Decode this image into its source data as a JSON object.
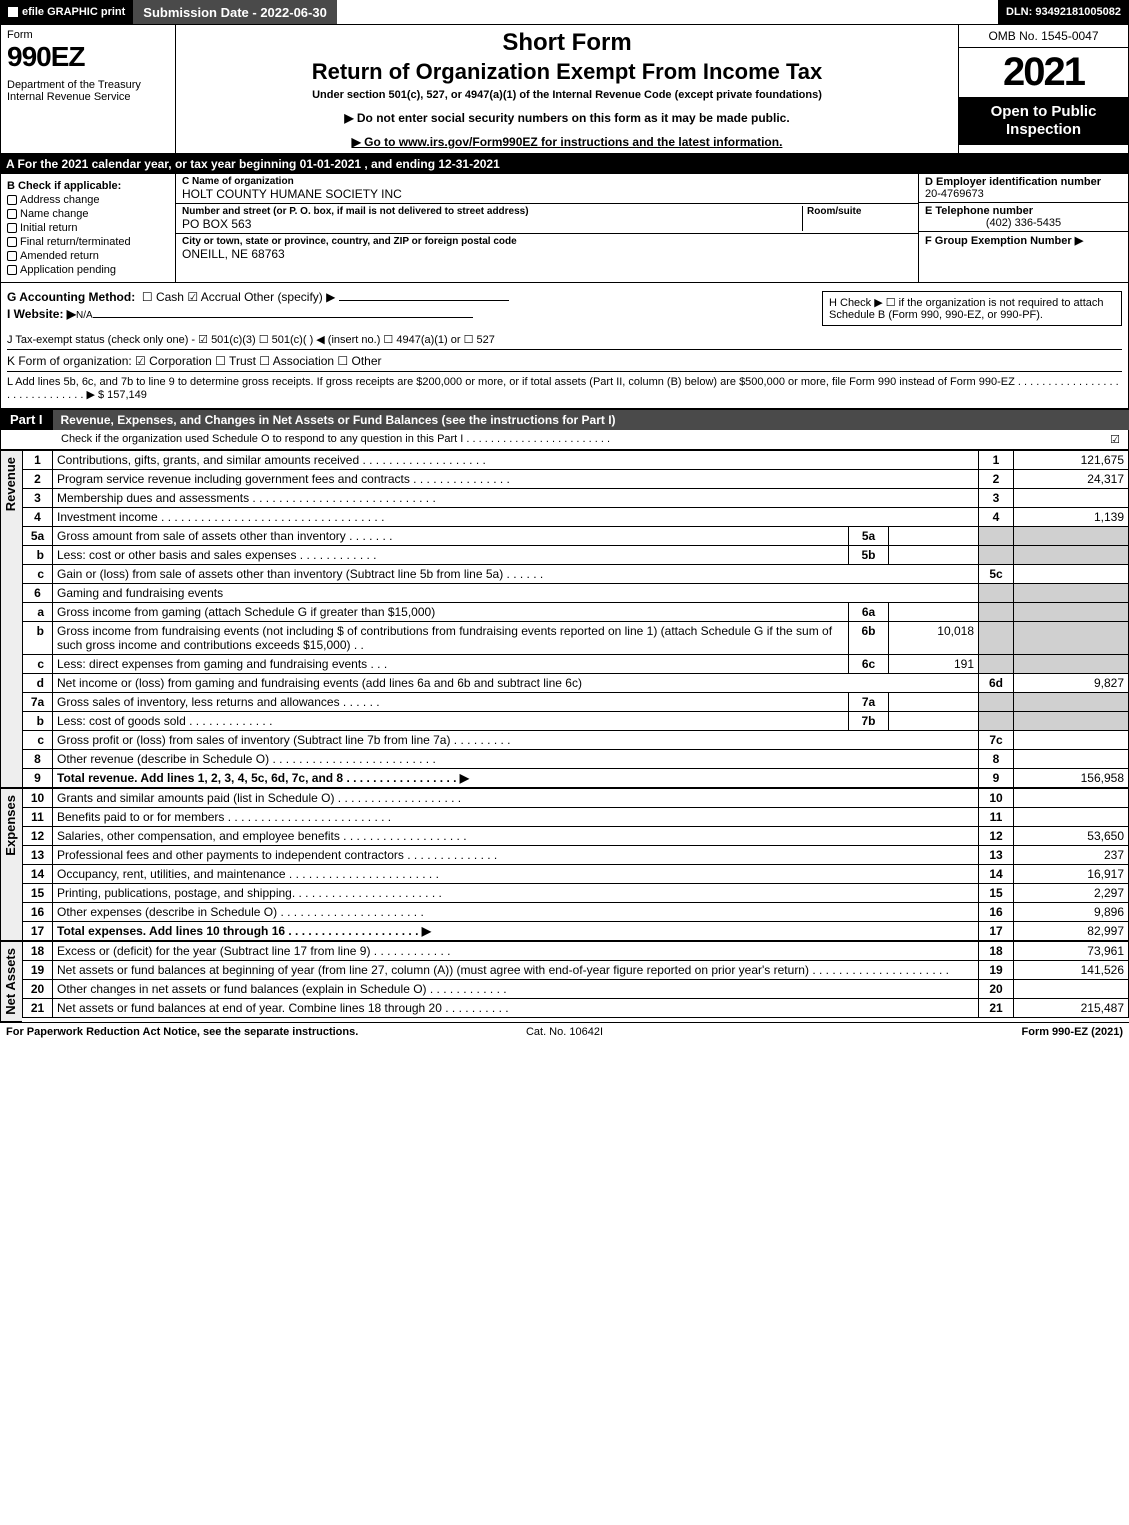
{
  "topbar": {
    "efile": "efile GRAPHIC print",
    "submission": "Submission Date - 2022-06-30",
    "dln": "DLN: 93492181005082"
  },
  "header": {
    "form_word": "Form",
    "form_no": "990EZ",
    "dept": "Department of the Treasury\nInternal Revenue Service",
    "title1": "Short Form",
    "title2": "Return of Organization Exempt From Income Tax",
    "subtitle": "Under section 501(c), 527, or 4947(a)(1) of the Internal Revenue Code (except private foundations)",
    "warn": "▶ Do not enter social security numbers on this form as it may be made public.",
    "goto": "▶ Go to www.irs.gov/Form990EZ for instructions and the latest information.",
    "omb": "OMB No. 1545-0047",
    "year": "2021",
    "badge": "Open to Public Inspection"
  },
  "rowA": "A  For the 2021 calendar year, or tax year beginning 01-01-2021 , and ending 12-31-2021",
  "colB": {
    "title": "B  Check if applicable:",
    "items": [
      "Address change",
      "Name change",
      "Initial return",
      "Final return/terminated",
      "Amended return",
      "Application pending"
    ]
  },
  "colC": {
    "name_lbl": "C Name of organization",
    "name": "HOLT COUNTY HUMANE SOCIETY INC",
    "street_lbl": "Number and street (or P. O. box, if mail is not delivered to street address)",
    "room_lbl": "Room/suite",
    "street": "PO BOX 563",
    "city_lbl": "City or town, state or province, country, and ZIP or foreign postal code",
    "city": "ONEILL, NE  68763"
  },
  "colD": {
    "ein_lbl": "D Employer identification number",
    "ein": "20-4769673",
    "tel_lbl": "E Telephone number",
    "tel": "(402) 336-5435",
    "grp_lbl": "F Group Exemption Number  ▶"
  },
  "mid": {
    "G": "G Accounting Method:",
    "G_opts": "☐ Cash   ☑ Accrual   Other (specify) ▶",
    "H": "H   Check ▶  ☐  if the organization is not required to attach Schedule B (Form 990, 990-EZ, or 990-PF).",
    "I": "I Website: ▶",
    "I_val": "N/A",
    "J": "J Tax-exempt status (check only one) - ☑ 501(c)(3) ☐ 501(c)(  ) ◀ (insert no.) ☐ 4947(a)(1) or ☐ 527",
    "K": "K Form of organization:   ☑ Corporation   ☐ Trust   ☐ Association   ☐ Other",
    "L": "L Add lines 5b, 6c, and 7b to line 9 to determine gross receipts. If gross receipts are $200,000 or more, or if total assets (Part II, column (B) below) are $500,000 or more, file Form 990 instead of Form 990-EZ  .  .  .  .  .  .  .  .  .  .  .  .  .  .  .  .  .  .  .  .  .  .  .  .  .  .  .  .  .  .  ▶ $ 157,149"
  },
  "part1": {
    "tag": "Part I",
    "title": "Revenue, Expenses, and Changes in Net Assets or Fund Balances (see the instructions for Part I)",
    "sub": "Check if the organization used Schedule O to respond to any question in this Part I  .  .  .  .  .  .  .  .  .  .  .  .  .  .  .  .  .  .  .  .  .  .  .  .",
    "checked": "☑"
  },
  "groups": {
    "revenue": "Revenue",
    "expenses": "Expenses",
    "netassets": "Net Assets"
  },
  "lines": [
    {
      "g": "rev",
      "n": "1",
      "d": "Contributions, gifts, grants, and similar amounts received  .  .  .  .  .  .  .  .  .  .  .  .  .  .  .  .  .  .  .",
      "r": "1",
      "a": "121,675"
    },
    {
      "g": "rev",
      "n": "2",
      "d": "Program service revenue including government fees and contracts  .  .  .  .  .  .  .  .  .  .  .  .  .  .  .",
      "r": "2",
      "a": "24,317"
    },
    {
      "g": "rev",
      "n": "3",
      "d": "Membership dues and assessments  .  .  .  .  .  .  .  .  .  .  .  .  .  .  .  .  .  .  .  .  .  .  .  .  .  .  .  .",
      "r": "3",
      "a": ""
    },
    {
      "g": "rev",
      "n": "4",
      "d": "Investment income  .  .  .  .  .  .  .  .  .  .  .  .  .  .  .  .  .  .  .  .  .  .  .  .  .  .  .  .  .  .  .  .  .  .",
      "r": "4",
      "a": "1,139"
    },
    {
      "g": "rev",
      "n": "5a",
      "d": "Gross amount from sale of assets other than inventory  .  .  .  .  .  .  .",
      "box": "5a",
      "bv": "",
      "shade": true
    },
    {
      "g": "rev",
      "n": "b",
      "d": "Less: cost or other basis and sales expenses  .  .  .  .  .  .  .  .  .  .  .  .",
      "box": "5b",
      "bv": "",
      "shade": true
    },
    {
      "g": "rev",
      "n": "c",
      "d": "Gain or (loss) from sale of assets other than inventory (Subtract line 5b from line 5a)  .  .  .  .  .  .",
      "r": "5c",
      "a": ""
    },
    {
      "g": "rev",
      "n": "6",
      "d": "Gaming and fundraising events",
      "shade": true
    },
    {
      "g": "rev",
      "n": "a",
      "d": "Gross income from gaming (attach Schedule G if greater than $15,000)",
      "box": "6a",
      "bv": "",
      "shade": true
    },
    {
      "g": "rev",
      "n": "b",
      "d": "Gross income from fundraising events (not including $                      of contributions from fundraising events reported on line 1) (attach Schedule G if the sum of such gross income and contributions exceeds $15,000)    .   .",
      "box": "6b",
      "bv": "10,018",
      "shade": true
    },
    {
      "g": "rev",
      "n": "c",
      "d": "Less: direct expenses from gaming and fundraising events       .   .   .",
      "box": "6c",
      "bv": "191",
      "shade": true
    },
    {
      "g": "rev",
      "n": "d",
      "d": "Net income or (loss) from gaming and fundraising events (add lines 6a and 6b and subtract line 6c)",
      "r": "6d",
      "a": "9,827"
    },
    {
      "g": "rev",
      "n": "7a",
      "d": "Gross sales of inventory, less returns and allowances  .  .  .  .  .  .",
      "box": "7a",
      "bv": "",
      "shade": true
    },
    {
      "g": "rev",
      "n": "b",
      "d": "Less: cost of goods sold        .   .   .   .   .   .   .   .   .   .   .   .   .",
      "box": "7b",
      "bv": "",
      "shade": true
    },
    {
      "g": "rev",
      "n": "c",
      "d": "Gross profit or (loss) from sales of inventory (Subtract line 7b from line 7a)  .  .  .  .  .  .  .  .  .",
      "r": "7c",
      "a": ""
    },
    {
      "g": "rev",
      "n": "8",
      "d": "Other revenue (describe in Schedule O)  .  .  .  .  .  .  .  .  .  .  .  .  .  .  .  .  .  .  .  .  .  .  .  .  .",
      "r": "8",
      "a": ""
    },
    {
      "g": "rev",
      "n": "9",
      "d": "Total revenue. Add lines 1, 2, 3, 4, 5c, 6d, 7c, and 8   .  .  .  .  .  .  .  .  .  .  .  .  .  .  .  .  .   ▶",
      "r": "9",
      "a": "156,958",
      "bold": true
    },
    {
      "g": "exp",
      "n": "10",
      "d": "Grants and similar amounts paid (list in Schedule O)  .  .  .  .  .  .  .  .  .  .  .  .  .  .  .  .  .  .  .",
      "r": "10",
      "a": ""
    },
    {
      "g": "exp",
      "n": "11",
      "d": "Benefits paid to or for members       .  .  .  .  .  .  .  .  .  .  .  .  .  .  .  .  .  .  .  .  .  .  .  .  .",
      "r": "11",
      "a": ""
    },
    {
      "g": "exp",
      "n": "12",
      "d": "Salaries, other compensation, and employee benefits  .  .  .  .  .  .  .  .  .  .  .  .  .  .  .  .  .  .  .",
      "r": "12",
      "a": "53,650"
    },
    {
      "g": "exp",
      "n": "13",
      "d": "Professional fees and other payments to independent contractors  .  .  .  .  .  .  .  .  .  .  .  .  .  .",
      "r": "13",
      "a": "237"
    },
    {
      "g": "exp",
      "n": "14",
      "d": "Occupancy, rent, utilities, and maintenance  .  .  .  .  .  .  .  .  .  .  .  .  .  .  .  .  .  .  .  .  .  .  .",
      "r": "14",
      "a": "16,917"
    },
    {
      "g": "exp",
      "n": "15",
      "d": "Printing, publications, postage, and shipping.  .  .  .  .  .  .  .  .  .  .  .  .  .  .  .  .  .  .  .  .  .  .",
      "r": "15",
      "a": "2,297"
    },
    {
      "g": "exp",
      "n": "16",
      "d": "Other expenses (describe in Schedule O)      .  .  .  .  .  .  .  .  .  .  .  .  .  .  .  .  .  .  .  .  .  .",
      "r": "16",
      "a": "9,896"
    },
    {
      "g": "exp",
      "n": "17",
      "d": "Total expenses. Add lines 10 through 16      .  .  .  .  .  .  .  .  .  .  .  .  .  .  .  .  .  .  .  .   ▶",
      "r": "17",
      "a": "82,997",
      "bold": true
    },
    {
      "g": "net",
      "n": "18",
      "d": "Excess or (deficit) for the year (Subtract line 17 from line 9)        .   .   .   .   .   .   .   .   .   .   .   .",
      "r": "18",
      "a": "73,961"
    },
    {
      "g": "net",
      "n": "19",
      "d": "Net assets or fund balances at beginning of year (from line 27, column (A)) (must agree with end-of-year figure reported on prior year's return)  .  .  .  .  .  .  .  .  .  .  .  .  .  .  .  .  .  .  .  .  .",
      "r": "19",
      "a": "141,526"
    },
    {
      "g": "net",
      "n": "20",
      "d": "Other changes in net assets or fund balances (explain in Schedule O)  .  .  .  .  .  .  .  .  .  .  .  .",
      "r": "20",
      "a": ""
    },
    {
      "g": "net",
      "n": "21",
      "d": "Net assets or fund balances at end of year. Combine lines 18 through 20  .  .  .  .  .  .  .  .  .  .",
      "r": "21",
      "a": "215,487"
    }
  ],
  "footer": {
    "left": "For Paperwork Reduction Act Notice, see the separate instructions.",
    "mid": "Cat. No. 10642I",
    "right": "Form 990-EZ (2021)"
  }
}
